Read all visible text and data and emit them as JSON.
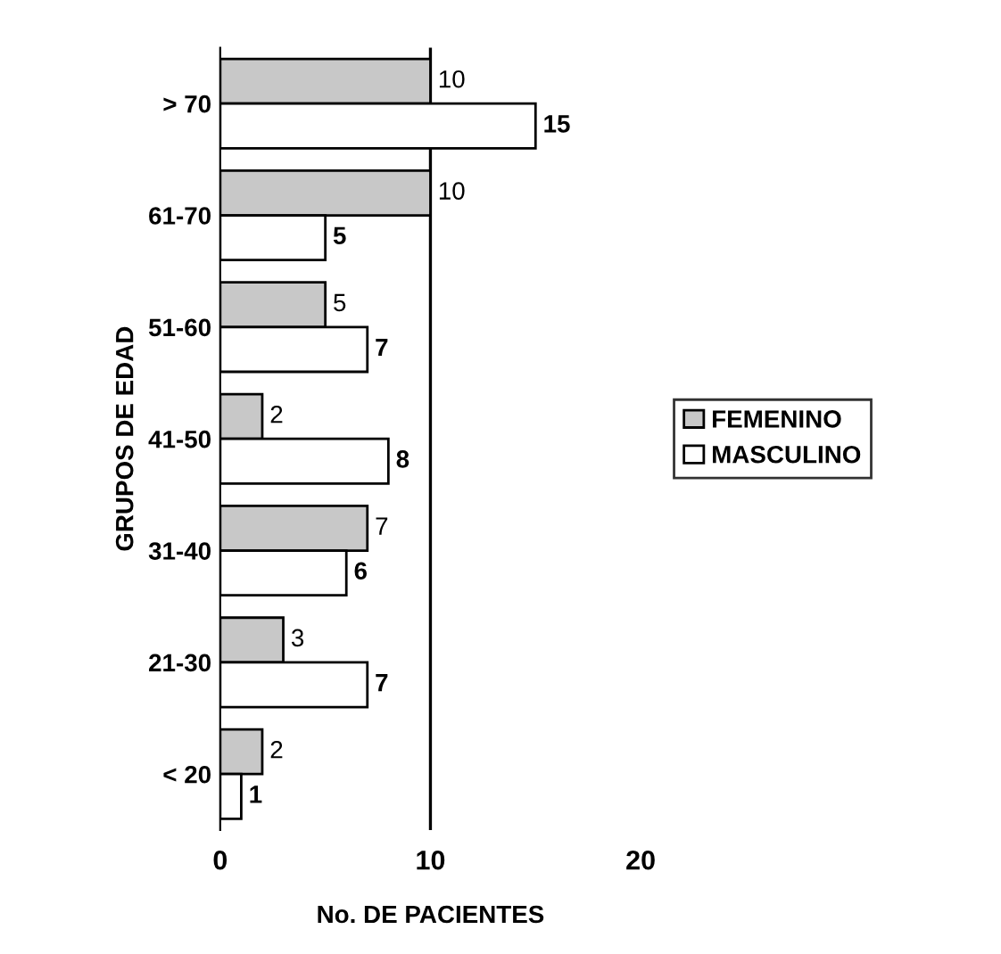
{
  "chart_data": {
    "type": "bar",
    "orientation": "horizontal",
    "xlabel": "No. DE PACIENTES",
    "ylabel": "GRUPOS DE EDAD",
    "categories": [
      "> 70",
      "61-70",
      "51-60",
      "41-50",
      "31-40",
      "21-30",
      "< 20"
    ],
    "series": [
      {
        "name": "FEMENINO",
        "color": "#c8c8c8",
        "values": [
          10,
          10,
          5,
          2,
          7,
          3,
          2
        ]
      },
      {
        "name": "MASCULINO",
        "color": "#ffffff",
        "values": [
          15,
          5,
          7,
          8,
          6,
          7,
          1
        ]
      }
    ],
    "xlim": [
      0,
      20
    ],
    "xticks": [
      0,
      10,
      20
    ],
    "data_labels": true,
    "legend": "right",
    "grid": false,
    "ref_lines": [
      {
        "axis": "x",
        "value": 10
      }
    ]
  }
}
